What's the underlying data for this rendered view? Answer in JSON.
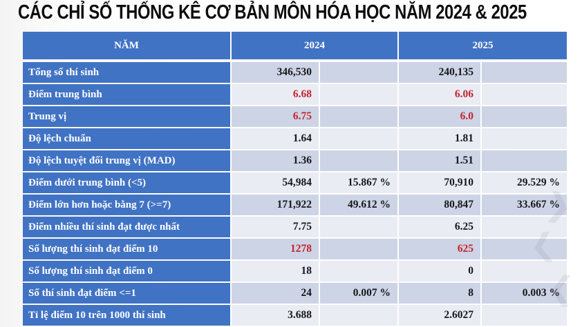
{
  "title": "CÁC CHỈ SỐ THỐNG KÊ CƠ BẢN MÔN HÓA HỌC NĂM 2024 & 2025",
  "header": {
    "nam": "NĂM",
    "y2024": "2024",
    "y2025": "2025"
  },
  "chart_data": {
    "type": "table",
    "title": "CÁC CHỈ SỐ THỐNG KÊ CƠ BẢN MÔN HÓA HỌC NĂM 2024 & 2025",
    "columns": [
      "NĂM",
      "2024",
      "2024 %",
      "2025",
      "2025 %"
    ],
    "rows": [
      {
        "label": "Tổng số thí sinh",
        "v2024": "346,530",
        "p2024": "",
        "v2025": "240,135",
        "p2025": "",
        "red": false
      },
      {
        "label": "Điểm trung bình",
        "v2024": "6.68",
        "p2024": "",
        "v2025": "6.06",
        "p2025": "",
        "red": true
      },
      {
        "label": "Trung vị",
        "v2024": "6.75",
        "p2024": "",
        "v2025": "6.0",
        "p2025": "",
        "red": true
      },
      {
        "label": "Độ lệch chuẩn",
        "v2024": "1.64",
        "p2024": "",
        "v2025": "1.81",
        "p2025": "",
        "red": false
      },
      {
        "label": "Độ lệch tuyệt đối trung vị (MAD)",
        "v2024": "1.36",
        "p2024": "",
        "v2025": "1.51",
        "p2025": "",
        "red": false
      },
      {
        "label": "Điểm dưới trung bình (<5)",
        "v2024": "54,984",
        "p2024": "15.867 %",
        "v2025": "70,910",
        "p2025": "29.529 %",
        "red": false
      },
      {
        "label": "Điểm lớn hơn hoặc bằng 7 (>=7)",
        "v2024": "171,922",
        "p2024": "49.612 %",
        "v2025": "80,847",
        "p2025": "33.667 %",
        "red": false
      },
      {
        "label": "Điểm nhiều thí sinh đạt được nhất",
        "v2024": "7.75",
        "p2024": "",
        "v2025": "6.25",
        "p2025": "",
        "red": false
      },
      {
        "label": "Số lượng thí sinh đạt điểm 10",
        "v2024": "1278",
        "p2024": "",
        "v2025": "625",
        "p2025": "",
        "red": true
      },
      {
        "label": "Số lượng thí sinh đạt điểm 0",
        "v2024": "18",
        "p2024": "",
        "v2025": "0",
        "p2025": "",
        "red": false
      },
      {
        "label": "Số thí sinh đạt điểm <=1",
        "v2024": "24",
        "p2024": "0.007 %",
        "v2025": "8",
        "p2025": "0.003 %",
        "red": false
      },
      {
        "label": "Tỉ lệ điểm 10 trên 1000 thí sinh",
        "v2024": "3.688",
        "p2024": "",
        "v2025": "2.6027",
        "p2025": "",
        "red": false
      }
    ]
  },
  "colors": {
    "header_blue": "#4173C4",
    "band_dark": "#CDD4E6",
    "band_light": "#EAECF4",
    "red_value": "#C4242B",
    "value_ink": "#17171B"
  },
  "watermark": {
    "glyphs": [
      "❯",
      "❮",
      "❮"
    ]
  }
}
